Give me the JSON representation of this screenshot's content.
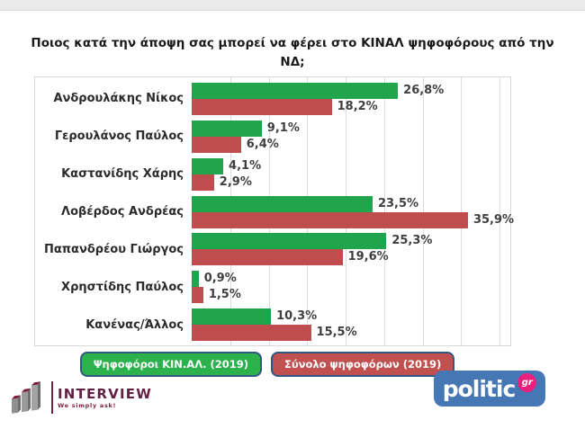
{
  "title": {
    "line1": "Ποιος κατά την άποψη σας μπορεί να φέρει στο ΚΙΝΑΛ ψηφοφόρους από την",
    "line2": "ΝΔ;"
  },
  "chart_data": {
    "type": "bar",
    "orientation": "horizontal",
    "categories": [
      "Ανδρουλάκης Νίκος",
      "Γερουλάνος Παύλος",
      "Καστανίδης Χάρης",
      "Λοβέρδος Ανδρέας",
      "Παπανδρέου Γιώργος",
      "Χρηστίδης Παύλος",
      "Κανένας/Άλλος"
    ],
    "series": [
      {
        "name": "Ψηφοφόροι ΚΙΝ.ΑΛ. (2019)",
        "color": "#21a54c",
        "button_color": "#2bb24c",
        "values": [
          26.8,
          9.1,
          4.1,
          23.5,
          25.3,
          0.9,
          10.3
        ],
        "labels": [
          "26,8%",
          "9,1%",
          "4,1%",
          "23,5%",
          "25,3%",
          "0,9%",
          "10,3%"
        ]
      },
      {
        "name": "Σύνολο ψηφοφόρων (2019)",
        "color": "#bf4d4d",
        "button_color": "#c15050",
        "values": [
          18.2,
          6.4,
          2.9,
          35.9,
          19.6,
          1.5,
          15.5
        ],
        "labels": [
          "18,2%",
          "6,4%",
          "2,9%",
          "35,9%",
          "19,6%",
          "1,5%",
          "15,5%"
        ]
      }
    ],
    "xlim": [
      0,
      41.4
    ],
    "grid_step": 5,
    "grid_max": 40,
    "grid_on": true,
    "legend_position": "bottom",
    "value_label_decimal": "comma"
  },
  "colors": {
    "grid": "#dcdcdc",
    "chart_border": "#d8d8d8",
    "legend_border": "#2d5984",
    "value_text": "#3f3f3f",
    "interview_maroon": "#612144",
    "politic_blue": "#4677b5",
    "politic_pink": "#e9217d"
  },
  "footer": {
    "interview": {
      "name": "INTERVIEW",
      "tagline": "We simply ask!"
    },
    "politic": {
      "text": "politic",
      "suffix": "gr"
    }
  }
}
